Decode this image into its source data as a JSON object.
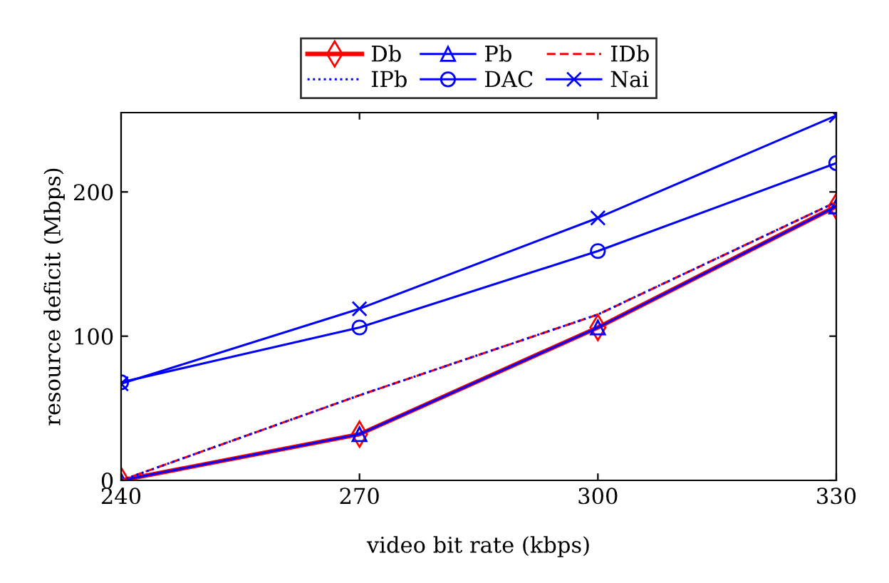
{
  "chart_data": {
    "type": "line",
    "xlabel": "video bit rate (kbps)",
    "ylabel": "resource deficit (Mbps)",
    "x": [
      240,
      270,
      300,
      330
    ],
    "series": [
      {
        "name": "Db",
        "color": "#ff0000",
        "marker": "diamond",
        "line_style": "solid",
        "values": [
          0,
          32,
          106,
          190
        ]
      },
      {
        "name": "Pb",
        "color": "#0000ff",
        "marker": "triangle",
        "line_style": "solid",
        "values": [
          0,
          32,
          106,
          190
        ]
      },
      {
        "name": "IDb",
        "color": "#ff0000",
        "marker": "none",
        "line_style": "dashed",
        "values": [
          0,
          59,
          115,
          193
        ]
      },
      {
        "name": "IPb",
        "color": "#0000ff",
        "marker": "none",
        "line_style": "dotted",
        "values": [
          0,
          59,
          115,
          193
        ]
      },
      {
        "name": "DAC",
        "color": "#0000ff",
        "marker": "circle",
        "line_style": "solid",
        "values": [
          68,
          106,
          159,
          220
        ]
      },
      {
        "name": "Nai",
        "color": "#0000ff",
        "marker": "cross",
        "line_style": "solid",
        "values": [
          67,
          119,
          182,
          253
        ]
      }
    ],
    "xlim": [
      240,
      330
    ],
    "xticks": [
      240,
      270,
      300,
      330
    ],
    "ylim": [
      0,
      255
    ],
    "yticks": [
      0,
      100,
      200
    ],
    "grid": false,
    "legend": "top"
  }
}
